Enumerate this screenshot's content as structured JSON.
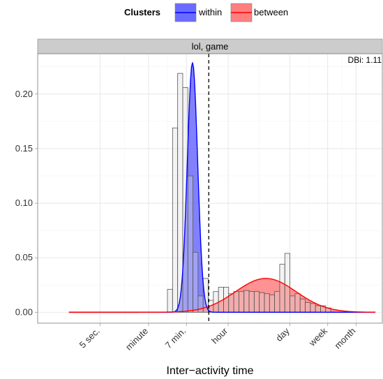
{
  "chart_data": {
    "type": "area",
    "facet_label": "lol, game",
    "annotation": "DBi: 1.11",
    "xlabel": "Inter−activity time",
    "ylabel": "",
    "xscale": "log10",
    "xlim_seconds": [
      0.2,
      10000000
    ],
    "ylim": [
      -0.01,
      0.237
    ],
    "grid": true,
    "legend": {
      "title": "Clusters",
      "position": "top",
      "entries": [
        {
          "name": "within",
          "fill": "#6b6bff",
          "line": "#0000ff"
        },
        {
          "name": "between",
          "fill": "#ff7f7f",
          "line": "#ff0000"
        }
      ]
    },
    "x_ticks": [
      {
        "label": "5 sec.",
        "seconds": 5
      },
      {
        "label": "minute",
        "seconds": 60
      },
      {
        "label": "7 min.",
        "seconds": 420
      },
      {
        "label": "hour",
        "seconds": 3600
      },
      {
        "label": "day",
        "seconds": 86400
      },
      {
        "label": "week",
        "seconds": 604800
      },
      {
        "label": "month",
        "seconds": 2592000
      }
    ],
    "y_ticks": [
      {
        "label": "0.00",
        "value": 0.0
      },
      {
        "label": "0.05",
        "value": 0.05
      },
      {
        "label": "0.10",
        "value": 0.1
      },
      {
        "label": "0.15",
        "value": 0.15
      },
      {
        "label": "0.20",
        "value": 0.2
      }
    ],
    "threshold_seconds": 1330,
    "histogram": {
      "bin_width_log10": 0.114,
      "bin_start_log10": 2.2,
      "heights": [
        0.021,
        0.169,
        0.219,
        0.206,
        0.125,
        0.055,
        0.015,
        0.031,
        0.011,
        0.019,
        0.023,
        0.023,
        0.017,
        0.019,
        0.019,
        0.02,
        0.019,
        0.019,
        0.018,
        0.017,
        0.016,
        0.019,
        0.044,
        0.054,
        0.015,
        0.017,
        0.012,
        0.009,
        0.008,
        0.006,
        0.006,
        0.004
      ]
    },
    "series": [
      {
        "name": "within",
        "color": "#0000ff",
        "fill": "#6b6bff",
        "peak_seconds": 575,
        "peak_value": 0.229,
        "sd_log10": 0.115
      },
      {
        "name": "between",
        "color": "#ff0000",
        "fill": "#ff7f7f",
        "peak_seconds": 25000,
        "peak_value": 0.031,
        "sd_log10": 0.68
      }
    ]
  }
}
